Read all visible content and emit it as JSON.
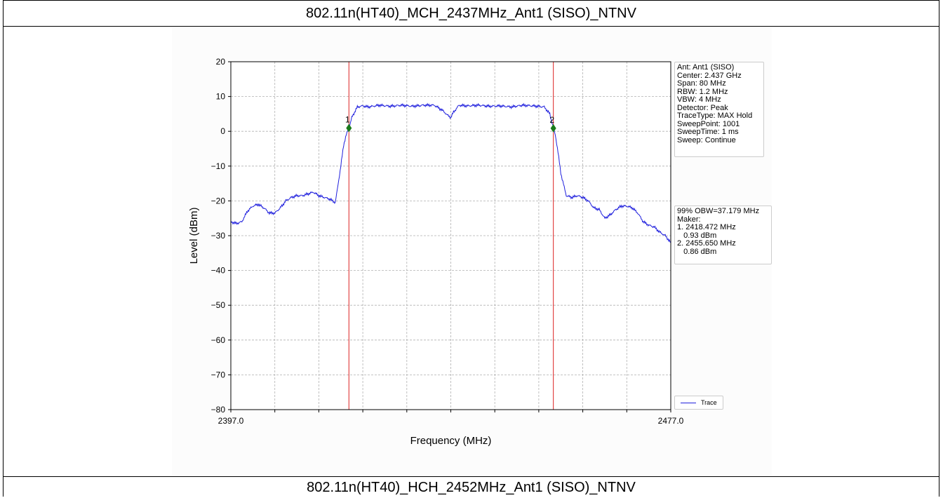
{
  "header": {
    "title_top": "802.11n(HT40)_MCH_2437MHz_Ant1 (SISO)_NTNV",
    "title_bottom": "802.11n(HT40)_HCH_2452MHz_Ant1 (SISO)_NTNV"
  },
  "settings_box": {
    "lines": [
      "Ant: Ant1 (SISO)",
      "Center: 2.437 GHz",
      "Span: 80 MHz",
      "RBW: 1.2 MHz",
      "VBW: 4 MHz",
      "Detector: Peak",
      "TraceType: MAX Hold",
      "SweepPoint: 1001",
      "SweepTime: 1 ms",
      "Sweep: Continue"
    ]
  },
  "result_box": {
    "lines": [
      "99% OBW=37.179 MHz",
      "Maker:",
      "1. 2418.472 MHz",
      "   0.93 dBm",
      "2. 2455.650 MHz",
      "   0.86 dBm"
    ]
  },
  "chart_data": {
    "type": "line",
    "xlabel": "Frequency (MHz)",
    "ylabel": "Level (dBm)",
    "xlim": [
      2397.0,
      2477.0
    ],
    "ylim": [
      -80,
      20
    ],
    "x_tick_labels": [
      "2397.0",
      "2477.0"
    ],
    "y_ticks": [
      20,
      10,
      0,
      -10,
      -20,
      -30,
      -40,
      -50,
      -60,
      -70,
      -80
    ],
    "y_tick_labels": [
      "20",
      "10",
      "0",
      "−10",
      "−20",
      "−30",
      "−40",
      "−50",
      "−60",
      "−70",
      "−80"
    ],
    "grid": true,
    "legend_position": "bottom-right",
    "series": [
      {
        "name": "Trace",
        "color": "#1f1fdd",
        "x": [
          2397.0,
          2398.0,
          2399.0,
          2400.0,
          2401.0,
          2402.0,
          2403.0,
          2404.0,
          2405.0,
          2406.0,
          2407.0,
          2408.0,
          2409.0,
          2410.0,
          2411.0,
          2412.0,
          2413.0,
          2414.0,
          2415.0,
          2416.0,
          2417.0,
          2417.5,
          2418.0,
          2418.472,
          2419.0,
          2420.0,
          2421.0,
          2422.0,
          2424.0,
          2426.0,
          2428.0,
          2430.0,
          2432.0,
          2434.0,
          2435.5,
          2436.5,
          2437.0,
          2437.5,
          2438.5,
          2440.0,
          2442.0,
          2444.0,
          2446.0,
          2448.0,
          2450.0,
          2452.0,
          2454.0,
          2455.0,
          2455.65,
          2456.0,
          2456.5,
          2457.0,
          2458.0,
          2459.0,
          2460.0,
          2461.0,
          2462.0,
          2463.0,
          2464.0,
          2465.0,
          2466.0,
          2467.0,
          2468.0,
          2469.0,
          2470.0,
          2471.0,
          2472.0,
          2473.0,
          2474.0,
          2475.0,
          2476.0,
          2477.0
        ],
        "y": [
          -26,
          -26.5,
          -26,
          -23,
          -21.5,
          -21,
          -22,
          -23.5,
          -23.5,
          -22,
          -20,
          -19,
          -18.5,
          -18.5,
          -18,
          -17.5,
          -18.5,
          -19,
          -19.5,
          -20.5,
          -10,
          -4,
          -1,
          0.93,
          4,
          7,
          7.3,
          7,
          7.5,
          7.2,
          7.5,
          7.2,
          7.5,
          7.5,
          6,
          4.5,
          4,
          5.5,
          7.5,
          7.3,
          7.5,
          7.2,
          7.3,
          7,
          7.5,
          7.3,
          7,
          5,
          0.86,
          -1,
          -6,
          -12,
          -18.5,
          -19,
          -18.5,
          -19,
          -20,
          -22,
          -22.5,
          -25,
          -24,
          -22.5,
          -21.5,
          -21.5,
          -22,
          -23.5,
          -26,
          -27,
          -27.5,
          -29,
          -30,
          -32
        ]
      }
    ],
    "markers": [
      {
        "label": "1",
        "x": 2418.472,
        "y": 0.93,
        "color": "#1a7a1a",
        "line_color": "#dd2222"
      },
      {
        "label": "2",
        "x": 2455.65,
        "y": 0.86,
        "color": "#1a7a1a",
        "line_color": "#dd2222"
      }
    ]
  }
}
